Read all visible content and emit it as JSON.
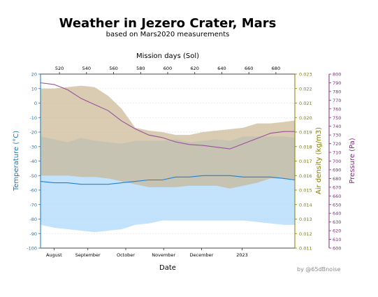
{
  "header": {
    "title": "Weather in Jezero Crater, Mars",
    "subtitle": "based on Mars2020 measurements"
  },
  "credit": "by @65dBnoise",
  "chart_data": {
    "type": "area",
    "title": "Weather in Jezero Crater, Mars",
    "subtitle": "based on Mars2020 measurements",
    "xlabel": "Date",
    "x2label": "Mission days (Sol)",
    "x_ticks": [
      "August",
      "September",
      "October",
      "November",
      "December",
      "2023"
    ],
    "x2_ticks": [
      "520",
      "540",
      "560",
      "580",
      "600",
      "620",
      "640",
      "660",
      "680"
    ],
    "xlim_sol": [
      506,
      694
    ],
    "y_left": {
      "label": "Temperature (°C)",
      "ylim": [
        -100,
        20
      ],
      "ticks": [
        -100,
        -90,
        -80,
        -70,
        -60,
        -50,
        -40,
        -30,
        -20,
        -10,
        0,
        10,
        20
      ],
      "color": "#1f77b4"
    },
    "y_right1": {
      "label": "Air density (kg/m3)",
      "ylim": [
        0.011,
        0.023
      ],
      "ticks": [
        "0.011",
        "0.012",
        "0.013",
        "0.014",
        "0.015",
        "0.016",
        "0.017",
        "0.018",
        "0.019",
        "0.020",
        "0.021",
        "0.022",
        "0.023"
      ],
      "color": "#808000"
    },
    "y_right2": {
      "label": "Pressure (Pa)",
      "ylim": [
        600,
        800
      ],
      "ticks": [
        600,
        610,
        620,
        630,
        640,
        650,
        660,
        670,
        680,
        690,
        700,
        710,
        720,
        730,
        740,
        750,
        760,
        770,
        780,
        790,
        800
      ],
      "color": "#7b2d7b"
    },
    "grid": true,
    "x": [
      506,
      516,
      526,
      536,
      546,
      556,
      566,
      576,
      586,
      596,
      606,
      616,
      626,
      636,
      646,
      656,
      666,
      676,
      686,
      694
    ],
    "series": [
      {
        "kind": "band",
        "axis": "left",
        "color": "#a9d5fb",
        "upper": [
          -23,
          -25,
          -27,
          -24,
          -26,
          -27,
          -28,
          -26,
          -26,
          -26,
          -25,
          -27,
          -26,
          -25,
          -26,
          -23,
          -23,
          -23,
          -23,
          -24
        ],
        "lower": [
          -84,
          -86,
          -87,
          -88,
          -89,
          -88,
          -87,
          -84,
          -83,
          -81,
          -81,
          -81,
          -81,
          -81,
          -81,
          -81,
          -82,
          -83,
          -84,
          -84
        ]
      },
      {
        "kind": "band",
        "axis": "density",
        "color": "#c9b693",
        "upper": [
          0.022,
          0.022,
          0.0221,
          0.0222,
          0.0221,
          0.0215,
          0.0206,
          0.0193,
          0.0191,
          0.019,
          0.0188,
          0.0188,
          0.019,
          0.0191,
          0.0192,
          0.0193,
          0.0196,
          0.0196,
          0.0197,
          0.0198
        ],
        "lower": [
          0.016,
          0.016,
          0.016,
          0.0159,
          0.0159,
          0.0158,
          0.0156,
          0.0154,
          0.0152,
          0.0152,
          0.0152,
          0.0153,
          0.0153,
          0.0153,
          0.0151,
          0.0153,
          0.0155,
          0.0158,
          0.0158,
          0.0157
        ]
      },
      {
        "kind": "line",
        "axis": "left",
        "name": "Temperature",
        "color": "#1f7fd4",
        "values": [
          -54,
          -55,
          -55,
          -56,
          -56,
          -56,
          -55,
          -54,
          -53,
          -53,
          -51,
          -51,
          -50,
          -50,
          -50,
          -51,
          -51,
          -51,
          -52,
          -53
        ]
      },
      {
        "kind": "line",
        "axis": "pressure",
        "name": "Pressure",
        "color": "#9b4f9b",
        "values": [
          790,
          788,
          782,
          772,
          765,
          758,
          746,
          737,
          730,
          727,
          722,
          719,
          718,
          716,
          714,
          720,
          726,
          732,
          734,
          734
        ]
      }
    ]
  }
}
